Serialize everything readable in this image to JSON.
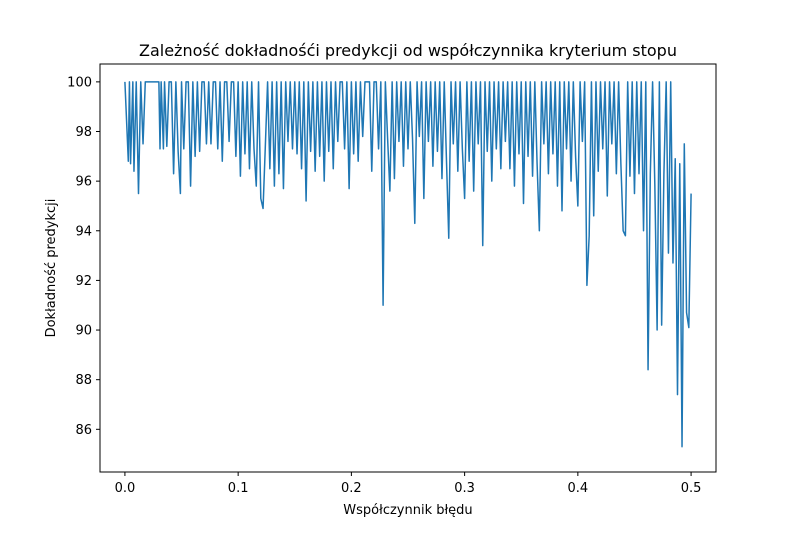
{
  "chart_data": {
    "type": "line",
    "title": "Zależność dokładnośći predykcji od współczynnika kryterium stopu",
    "xlabel": "Współczynnik błędu",
    "ylabel": "Dokładność predykcji",
    "xlim": [
      -0.022,
      0.522
    ],
    "ylim": [
      84.28,
      100.72
    ],
    "grid": false,
    "legend": "none",
    "xticks": [
      0.0,
      0.1,
      0.2,
      0.3,
      0.4,
      0.5
    ],
    "xtick_labels": [
      "0.0",
      "0.1",
      "0.2",
      "0.3",
      "0.4",
      "0.5"
    ],
    "yticks": [
      86,
      88,
      90,
      92,
      94,
      96,
      98,
      100
    ],
    "ytick_labels": [
      "86",
      "88",
      "90",
      "92",
      "94",
      "96",
      "98",
      "100"
    ],
    "series": [
      {
        "color": "#1f77b4",
        "x": [
          0.0,
          0.003,
          0.004,
          0.005,
          0.007,
          0.008,
          0.01,
          0.012,
          0.014,
          0.016,
          0.018,
          0.02,
          0.022,
          0.024,
          0.026,
          0.028,
          0.03,
          0.031,
          0.032,
          0.034,
          0.035,
          0.037,
          0.039,
          0.041,
          0.043,
          0.045,
          0.047,
          0.049,
          0.05,
          0.052,
          0.054,
          0.056,
          0.058,
          0.06,
          0.062,
          0.064,
          0.066,
          0.068,
          0.07,
          0.072,
          0.074,
          0.076,
          0.078,
          0.08,
          0.082,
          0.084,
          0.086,
          0.088,
          0.09,
          0.092,
          0.094,
          0.096,
          0.098,
          0.1,
          0.102,
          0.104,
          0.106,
          0.108,
          0.11,
          0.112,
          0.114,
          0.116,
          0.118,
          0.12,
          0.122,
          0.124,
          0.126,
          0.128,
          0.13,
          0.132,
          0.134,
          0.136,
          0.138,
          0.14,
          0.142,
          0.144,
          0.146,
          0.148,
          0.15,
          0.152,
          0.154,
          0.156,
          0.158,
          0.16,
          0.162,
          0.164,
          0.166,
          0.168,
          0.17,
          0.172,
          0.174,
          0.176,
          0.178,
          0.18,
          0.182,
          0.184,
          0.186,
          0.188,
          0.19,
          0.192,
          0.194,
          0.196,
          0.198,
          0.2,
          0.202,
          0.204,
          0.206,
          0.208,
          0.21,
          0.212,
          0.214,
          0.216,
          0.218,
          0.22,
          0.222,
          0.224,
          0.226,
          0.228,
          0.23,
          0.232,
          0.234,
          0.236,
          0.238,
          0.24,
          0.242,
          0.244,
          0.246,
          0.248,
          0.25,
          0.252,
          0.254,
          0.256,
          0.258,
          0.26,
          0.262,
          0.264,
          0.266,
          0.268,
          0.27,
          0.272,
          0.274,
          0.276,
          0.278,
          0.28,
          0.282,
          0.284,
          0.286,
          0.288,
          0.29,
          0.292,
          0.294,
          0.296,
          0.298,
          0.3,
          0.302,
          0.304,
          0.306,
          0.308,
          0.31,
          0.312,
          0.314,
          0.316,
          0.318,
          0.32,
          0.322,
          0.324,
          0.326,
          0.328,
          0.33,
          0.332,
          0.334,
          0.336,
          0.338,
          0.34,
          0.342,
          0.344,
          0.346,
          0.348,
          0.35,
          0.352,
          0.354,
          0.356,
          0.358,
          0.36,
          0.362,
          0.364,
          0.366,
          0.368,
          0.37,
          0.372,
          0.374,
          0.376,
          0.378,
          0.38,
          0.382,
          0.384,
          0.386,
          0.388,
          0.39,
          0.392,
          0.394,
          0.396,
          0.398,
          0.4,
          0.402,
          0.404,
          0.406,
          0.408,
          0.41,
          0.412,
          0.414,
          0.416,
          0.418,
          0.42,
          0.422,
          0.424,
          0.426,
          0.428,
          0.43,
          0.432,
          0.434,
          0.436,
          0.438,
          0.44,
          0.442,
          0.444,
          0.446,
          0.448,
          0.45,
          0.452,
          0.454,
          0.456,
          0.458,
          0.46,
          0.462,
          0.464,
          0.466,
          0.468,
          0.47,
          0.472,
          0.474,
          0.476,
          0.478,
          0.48,
          0.482,
          0.484,
          0.486,
          0.488,
          0.49,
          0.492,
          0.494,
          0.496,
          0.498,
          0.5
        ],
        "y": [
          100,
          96.8,
          100,
          96.7,
          100,
          96.4,
          100,
          95.5,
          100,
          97.5,
          100,
          100,
          100,
          100,
          100,
          100,
          100,
          97.3,
          100,
          97.3,
          100,
          97.4,
          100,
          100,
          96.3,
          100,
          97.2,
          95.5,
          100,
          97.3,
          100,
          100,
          95.8,
          100,
          97.0,
          100,
          97.2,
          100,
          100,
          97.5,
          100,
          97.5,
          100,
          100,
          97.3,
          100,
          96.8,
          100,
          100,
          97.6,
          100,
          100,
          97.0,
          100,
          96.2,
          100,
          97.1,
          100,
          96.5,
          100,
          97.3,
          95.8,
          100,
          95.3,
          94.9,
          97.4,
          100,
          96.5,
          100,
          95.8,
          100,
          96.3,
          100,
          95.7,
          100,
          97.6,
          100,
          97.3,
          100,
          97.1,
          100,
          96.5,
          100,
          95.2,
          100,
          97.2,
          100,
          96.4,
          100,
          97.0,
          100,
          96.0,
          100,
          97.2,
          100,
          96.5,
          100,
          97.6,
          100,
          100,
          97.3,
          100,
          95.7,
          100,
          97.1,
          100,
          96.8,
          100,
          97.8,
          100,
          100,
          100,
          96.4,
          100,
          100,
          97.3,
          100,
          91.0,
          100,
          97.7,
          95.6,
          100,
          96.1,
          100,
          97.6,
          100,
          96.6,
          100,
          97.3,
          100,
          97.7,
          94.3,
          100,
          97.8,
          100,
          95.3,
          100,
          97.6,
          100,
          96.6,
          100,
          97.2,
          100,
          96.1,
          100,
          96.8,
          93.7,
          100,
          97.5,
          100,
          96.4,
          100,
          97.3,
          95.3,
          100,
          96.8,
          100,
          95.6,
          100,
          97.5,
          100,
          93.4,
          100,
          97.2,
          100,
          96.0,
          100,
          97.3,
          100,
          96.5,
          100,
          97.6,
          100,
          96.5,
          100,
          95.8,
          100,
          97.1,
          100,
          95.1,
          100,
          97.0,
          100,
          96.2,
          100,
          96.7,
          94.0,
          100,
          97.5,
          100,
          96.3,
          100,
          97.1,
          100,
          95.8,
          100,
          94.8,
          100,
          97.3,
          100,
          96.0,
          100,
          97.0,
          95.0,
          100,
          97.6,
          100,
          91.8,
          93.8,
          100,
          94.6,
          100,
          96.4,
          100,
          97.3,
          100,
          95.4,
          100,
          97.5,
          100,
          96.3,
          100,
          96.7,
          94.0,
          93.8,
          100,
          96.2,
          100,
          95.5,
          100,
          96.3,
          100,
          94.0,
          100,
          88.4,
          96.3,
          100,
          95.8,
          90.0,
          100,
          90.2,
          96.3,
          100,
          93.1,
          100,
          92.7,
          96.9,
          87.4,
          96.7,
          85.3,
          97.5,
          90.7,
          90.1,
          95.5
        ]
      }
    ]
  }
}
